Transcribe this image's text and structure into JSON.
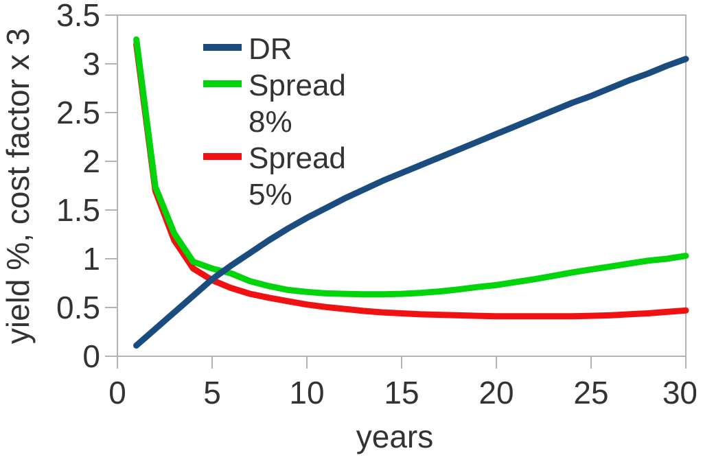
{
  "chart_data": {
    "type": "line",
    "title": "",
    "xlabel": "years",
    "ylabel": "yield %, cost factor x 3",
    "xlim": [
      0,
      30
    ],
    "ylim": [
      0,
      3.5
    ],
    "grid": false,
    "legend_position": "inside-top-left",
    "background": "#FFFFFF",
    "axis_color": "#B3B3B3",
    "text_color": "#333333",
    "x_ticks": [
      {
        "value": 0,
        "label": "0"
      },
      {
        "value": 5,
        "label": "5"
      },
      {
        "value": 10,
        "label": "10"
      },
      {
        "value": 15,
        "label": "15"
      },
      {
        "value": 20,
        "label": "20"
      },
      {
        "value": 25,
        "label": "25"
      },
      {
        "value": 30,
        "label": "30"
      }
    ],
    "y_ticks": [
      {
        "value": 0,
        "label": "0"
      },
      {
        "value": 0.5,
        "label": "0.5"
      },
      {
        "value": 1,
        "label": "1"
      },
      {
        "value": 1.5,
        "label": "1.5"
      },
      {
        "value": 2,
        "label": "2"
      },
      {
        "value": 2.5,
        "label": "2.5"
      },
      {
        "value": 3,
        "label": "3"
      },
      {
        "value": 3.5,
        "label": "3.5"
      }
    ],
    "x": [
      1,
      2,
      3,
      4,
      5,
      6,
      7,
      8,
      9,
      10,
      11,
      12,
      13,
      14,
      15,
      16,
      17,
      18,
      19,
      20,
      21,
      22,
      23,
      24,
      25,
      26,
      27,
      28,
      29,
      30
    ],
    "series": [
      {
        "name": "Spread 5%",
        "legend_lines": [
          "Spread",
          "5%"
        ],
        "color": "#F01212",
        "values": [
          3.2,
          1.7,
          1.19,
          0.9,
          0.78,
          0.7,
          0.64,
          0.6,
          0.565,
          0.53,
          0.505,
          0.485,
          0.465,
          0.45,
          0.44,
          0.43,
          0.425,
          0.42,
          0.415,
          0.41,
          0.41,
          0.41,
          0.41,
          0.41,
          0.415,
          0.42,
          0.43,
          0.44,
          0.455,
          0.47
        ]
      },
      {
        "name": "Spread 8%",
        "legend_lines": [
          "Spread",
          "8%"
        ],
        "color": "#00D40A",
        "values": [
          3.25,
          1.74,
          1.26,
          0.97,
          0.9,
          0.85,
          0.77,
          0.72,
          0.68,
          0.66,
          0.645,
          0.64,
          0.635,
          0.635,
          0.64,
          0.65,
          0.665,
          0.685,
          0.71,
          0.73,
          0.76,
          0.79,
          0.825,
          0.86,
          0.89,
          0.92,
          0.95,
          0.98,
          1.0,
          1.03
        ]
      },
      {
        "name": "DR",
        "legend_lines": [
          "DR"
        ],
        "color": "#1A4C80",
        "values": [
          0.11,
          0.28,
          0.45,
          0.62,
          0.79,
          0.93,
          1.06,
          1.19,
          1.31,
          1.42,
          1.52,
          1.62,
          1.71,
          1.8,
          1.88,
          1.96,
          2.04,
          2.12,
          2.2,
          2.28,
          2.36,
          2.44,
          2.52,
          2.6,
          2.67,
          2.75,
          2.83,
          2.9,
          2.98,
          3.05
        ]
      }
    ],
    "legend_order": [
      "DR",
      "Spread 8%",
      "Spread 5%"
    ]
  }
}
